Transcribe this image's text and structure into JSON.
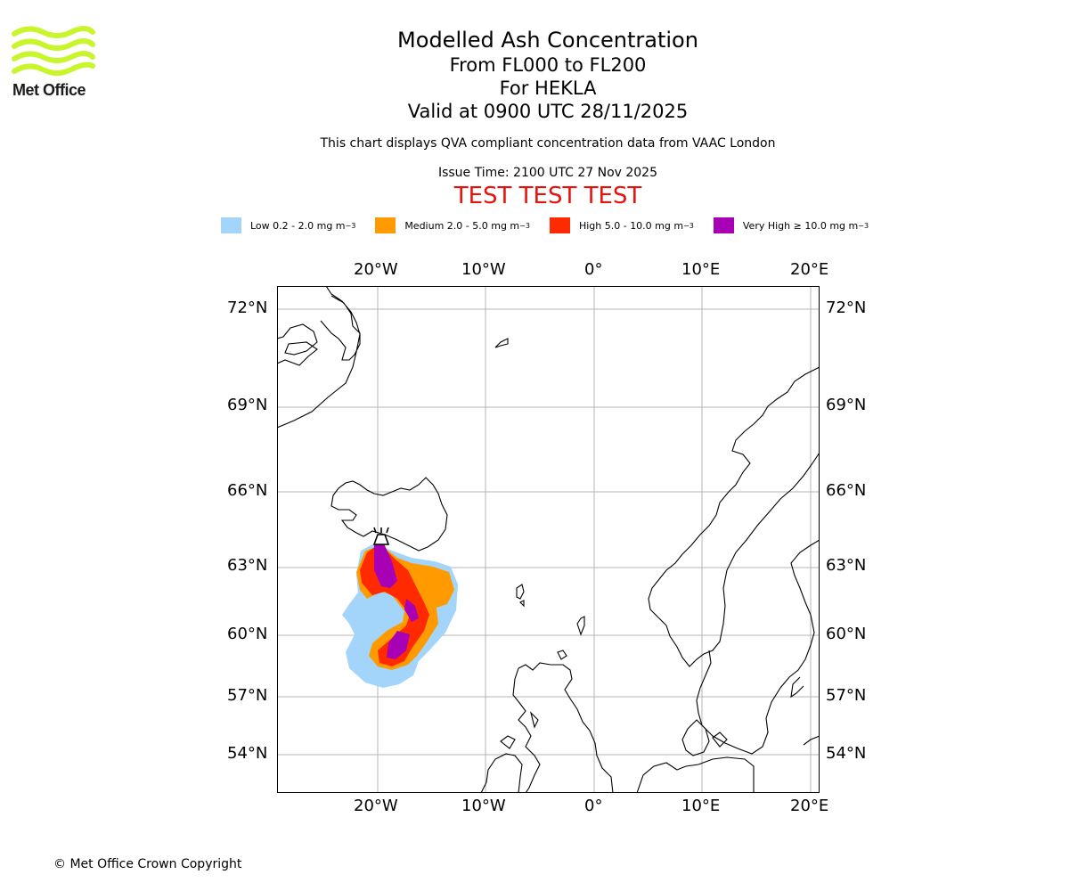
{
  "logo": {
    "text": "Met Office",
    "icon": "met-office-wave-logo",
    "color": "#c8f52c"
  },
  "title": {
    "main": "Modelled Ash Concentration",
    "levels": "From FL000 to FL200",
    "volcano": "For HEKLA",
    "valid": "Valid at 0900 UTC 28/11/2025",
    "description": "This chart displays QVA compliant concentration data from VAAC London",
    "issue": "Issue Time: 2100 UTC 27 Nov 2025",
    "test_banner": "TEST TEST TEST"
  },
  "legend": [
    {
      "label": "Low 0.2 - 2.0 mg m",
      "exp": "−3",
      "color": "#a3d5fb"
    },
    {
      "label": "Medium 2.0 - 5.0 mg m",
      "exp": "−3",
      "color": "#ff9a00"
    },
    {
      "label": "High 5.0 - 10.0 mg m",
      "exp": "−3",
      "color": "#ff2a00"
    },
    {
      "label": "Very High  ≥  10.0 mg m",
      "exp": "−3",
      "color": "#a800b4"
    }
  ],
  "axes": {
    "lon_labels": [
      "20°W",
      "10°W",
      "0°",
      "10°E",
      "20°E"
    ],
    "lat_labels": [
      "72°N",
      "69°N",
      "66°N",
      "63°N",
      "60°N",
      "57°N",
      "54°N"
    ]
  },
  "volcano_marker": {
    "name": "HEKLA",
    "icon": "volcano-icon"
  },
  "copyright": "© Met Office Crown Copyright"
}
